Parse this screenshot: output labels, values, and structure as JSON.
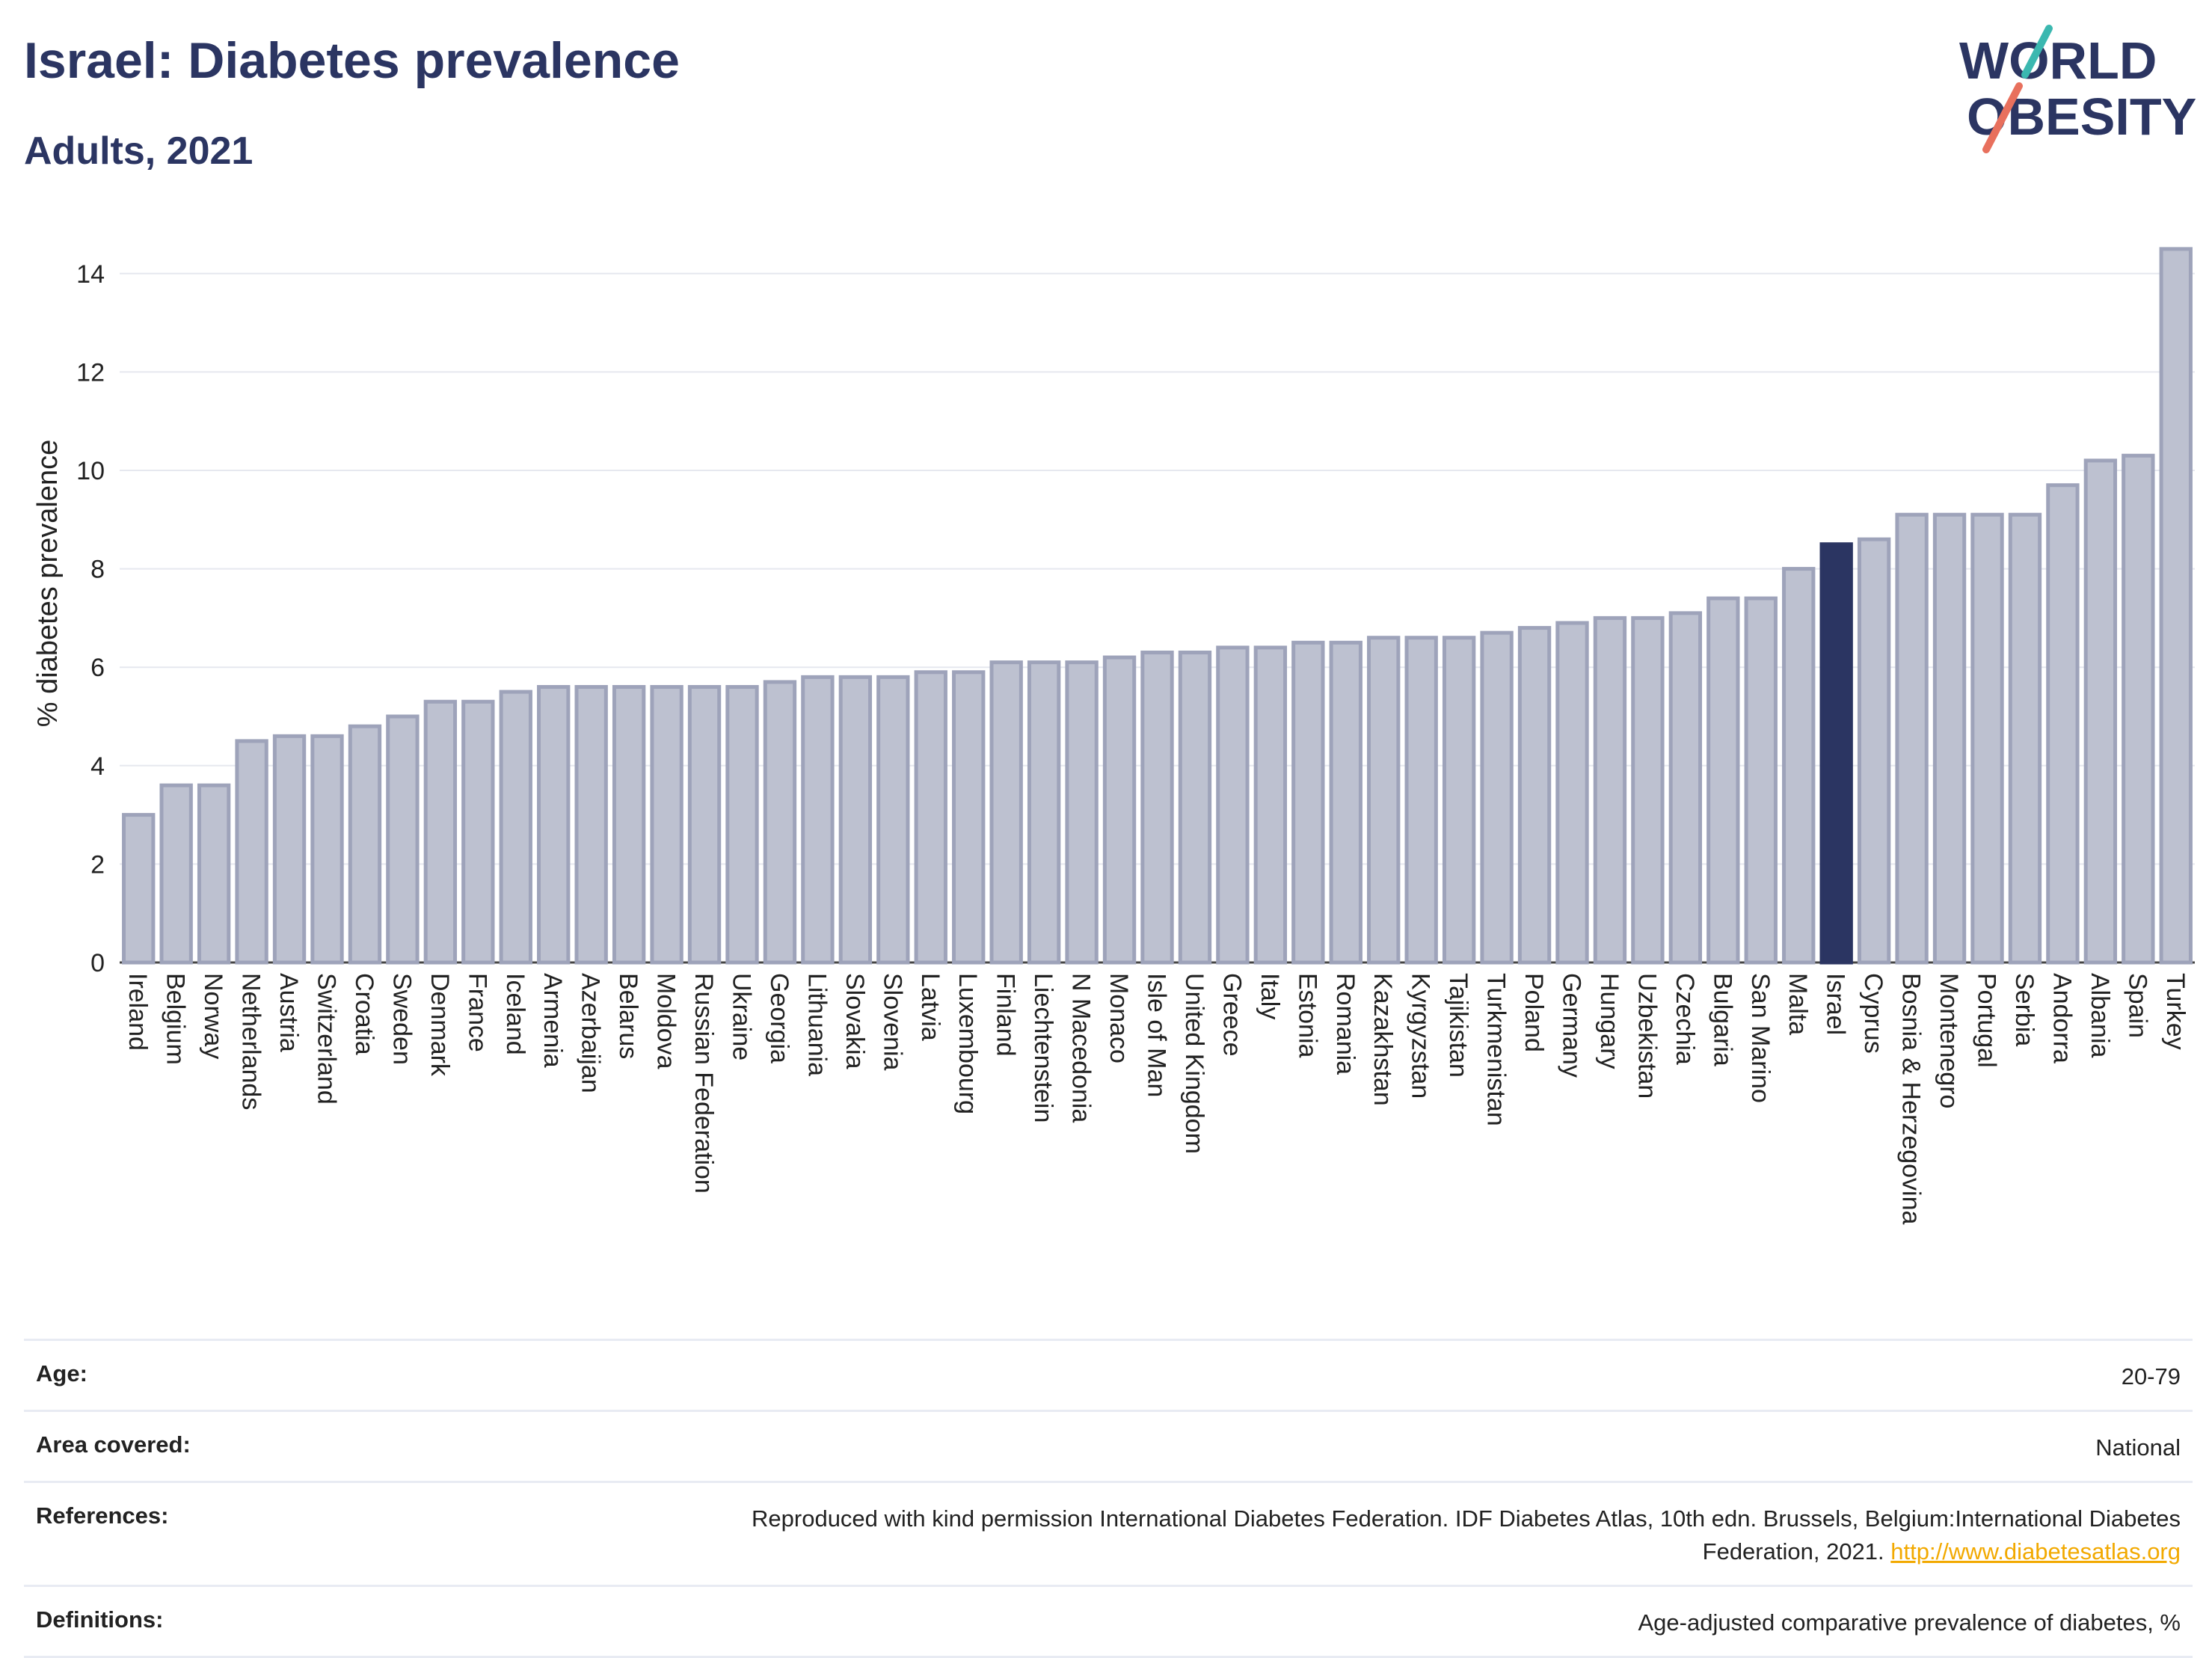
{
  "header": {
    "title": "Israel: Diabetes prevalence",
    "subtitle": "Adults, 2021"
  },
  "logo": {
    "line1": "WORLD",
    "line2": "OBESITY"
  },
  "colors": {
    "bar": "#bdc1d0",
    "bar_border": "#9ea3ba",
    "highlight": "#2b3562",
    "grid": "#e6e8ef"
  },
  "chart_data": {
    "type": "bar",
    "ylabel": "% diabetes prevalence",
    "xlabel": "",
    "ylim": [
      0,
      15
    ],
    "yticks": [
      0,
      2,
      4,
      6,
      8,
      10,
      12,
      14
    ],
    "grid": true,
    "highlight": "Israel",
    "categories": [
      "Ireland",
      "Belgium",
      "Norway",
      "Netherlands",
      "Austria",
      "Switzerland",
      "Croatia",
      "Sweden",
      "Denmark",
      "France",
      "Iceland",
      "Armenia",
      "Azerbaijan",
      "Belarus",
      "Moldova",
      "Russian Federation",
      "Ukraine",
      "Georgia",
      "Lithuania",
      "Slovakia",
      "Slovenia",
      "Latvia",
      "Luxembourg",
      "Finland",
      "Liechtenstein",
      "N Macedonia",
      "Monaco",
      "Isle of Man",
      "United Kingdom",
      "Greece",
      "Italy",
      "Estonia",
      "Romania",
      "Kazakhstan",
      "Kyrgyzstan",
      "Tajikistan",
      "Turkmenistan",
      "Poland",
      "Germany",
      "Hungary",
      "Uzbekistan",
      "Czechia",
      "Bulgaria",
      "San Marino",
      "Malta",
      "Israel",
      "Cyprus",
      "Bosnia & Herzegovina",
      "Montenegro",
      "Portugal",
      "Serbia",
      "Andorra",
      "Albania",
      "Spain",
      "Turkey"
    ],
    "values": [
      3.0,
      3.6,
      3.6,
      4.5,
      4.6,
      4.6,
      4.8,
      5.0,
      5.3,
      5.3,
      5.5,
      5.6,
      5.6,
      5.6,
      5.6,
      5.6,
      5.6,
      5.7,
      5.8,
      5.8,
      5.8,
      5.9,
      5.9,
      6.1,
      6.1,
      6.1,
      6.2,
      6.3,
      6.3,
      6.4,
      6.4,
      6.5,
      6.5,
      6.6,
      6.6,
      6.6,
      6.7,
      6.8,
      6.9,
      7.0,
      7.0,
      7.1,
      7.4,
      7.4,
      8.0,
      8.5,
      8.6,
      9.1,
      9.1,
      9.1,
      9.1,
      9.7,
      10.2,
      10.3,
      14.5
    ]
  },
  "info": [
    {
      "label": "Age:",
      "value": "20-79"
    },
    {
      "label": "Area covered:",
      "value": "National"
    },
    {
      "label": "References:",
      "value": "Reproduced with kind permission International Diabetes Federation.  IDF Diabetes Atlas, 10th edn. Brussels, Belgium:International Diabetes Federation, 2021.",
      "link": "http://www.diabetesatlas.org"
    },
    {
      "label": "Definitions:",
      "value": "Age-adjusted comparative prevalence of diabetes, %"
    }
  ]
}
